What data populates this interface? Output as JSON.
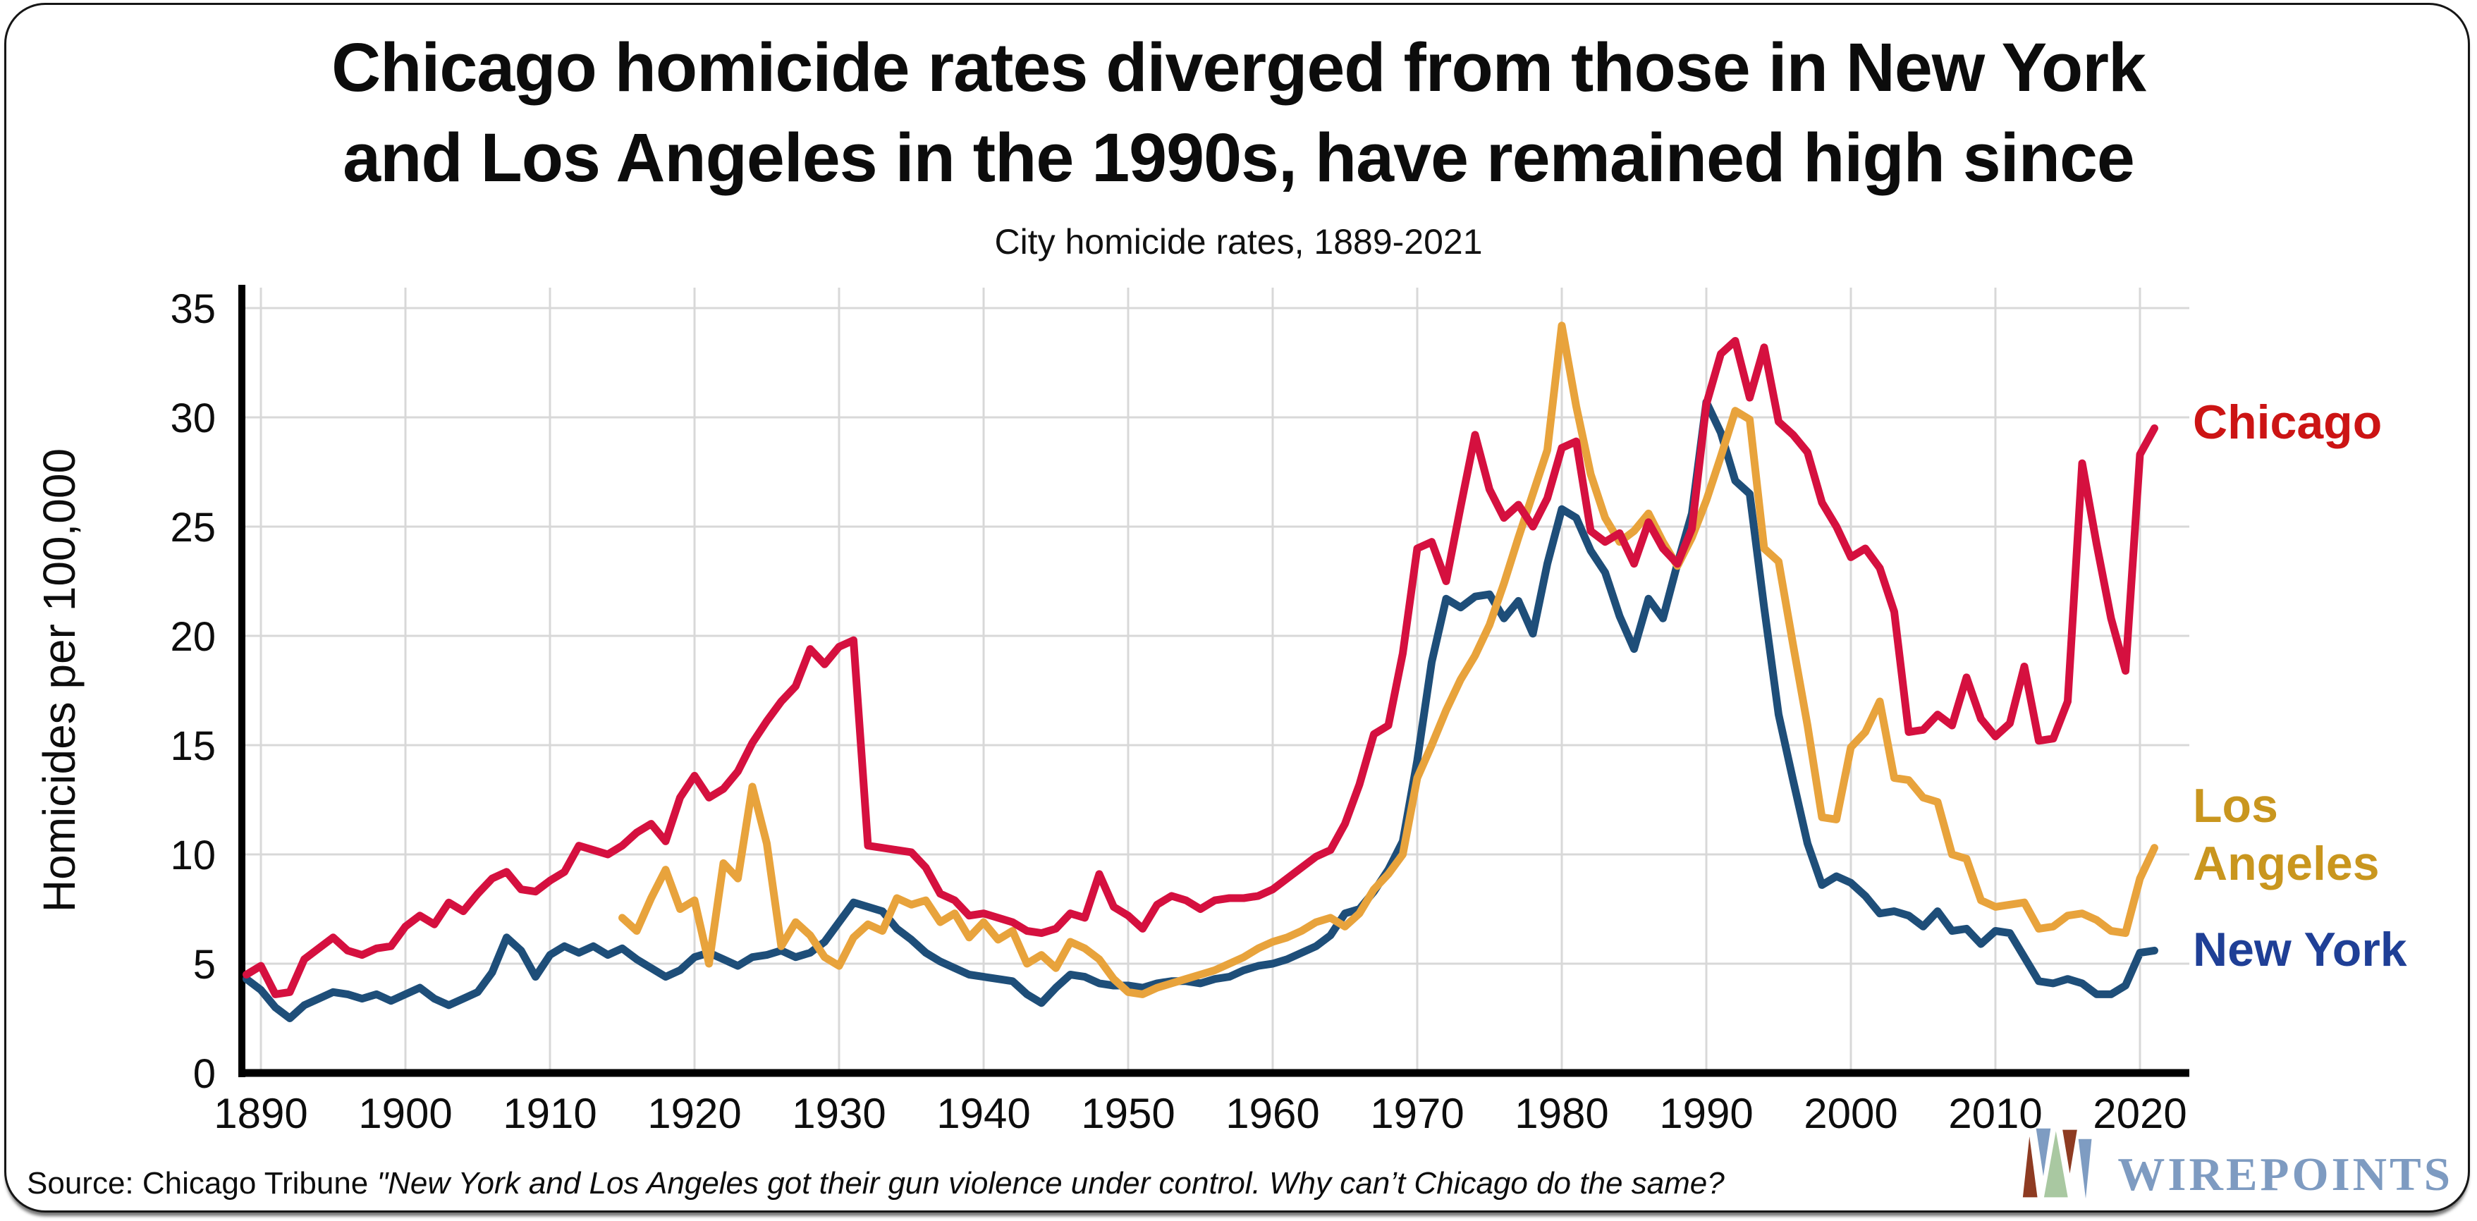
{
  "title": {
    "line1": "Chicago homicide rates diverged from those in New York",
    "line2": "and Los Angeles in the 1990s, have remained high since"
  },
  "subtitle": "City homicide rates, 1889-2021",
  "source": {
    "prefix": "Source: Chicago Tribune ",
    "quote": "\"New York and Los Angeles got their gun violence under control. Why can’t Chicago do the same?"
  },
  "logo": {
    "text": "WIREPOINTS",
    "text_color": "#7E9BC1",
    "mark_colors": [
      "#8E3B22",
      "#7E9CC2",
      "#A9C8A1",
      "#8E3B22",
      "#7E9CC2"
    ]
  },
  "chart_data": {
    "type": "line",
    "title": "Chicago homicide rates diverged from those in New York and Los Angeles in the 1990s, have remained high since",
    "subtitle": "City homicide rates, 1889-2021",
    "xlabel": "",
    "ylabel": "Homicides per 100,000",
    "x_range": [
      1889,
      2021
    ],
    "ylim": [
      0,
      35
    ],
    "yticks": [
      0,
      5,
      10,
      15,
      20,
      25,
      30,
      35
    ],
    "xticks": [
      1890,
      1900,
      1910,
      1920,
      1930,
      1940,
      1950,
      1960,
      1970,
      1980,
      1990,
      2000,
      2010,
      2020
    ],
    "grid": true,
    "legend_position": "right-end-labels",
    "grid_color": "#d8d8d8",
    "axis_color": "#000000",
    "series": [
      {
        "name": "New York",
        "label_lines": [
          "New York"
        ],
        "color": "#1E4E79",
        "label_color": "#1F3F96",
        "start_year": 1889,
        "values": [
          4.3,
          3.8,
          3.0,
          2.5,
          3.1,
          3.4,
          3.7,
          3.6,
          3.4,
          3.6,
          3.3,
          3.6,
          3.9,
          3.4,
          3.1,
          3.4,
          3.7,
          4.6,
          6.2,
          5.6,
          4.4,
          5.4,
          5.8,
          5.5,
          5.8,
          5.4,
          5.7,
          5.2,
          4.8,
          4.4,
          4.7,
          5.3,
          5.5,
          5.2,
          4.9,
          5.3,
          5.4,
          5.6,
          5.3,
          5.5,
          6.0,
          6.9,
          7.8,
          7.6,
          7.4,
          6.6,
          6.1,
          5.5,
          5.1,
          4.8,
          4.5,
          4.4,
          4.3,
          4.2,
          3.6,
          3.2,
          3.9,
          4.5,
          4.4,
          4.1,
          4.0,
          4.0,
          3.9,
          4.1,
          4.2,
          4.2,
          4.1,
          4.3,
          4.4,
          4.7,
          4.9,
          5.0,
          5.2,
          5.5,
          5.8,
          6.3,
          7.3,
          7.5,
          8.3,
          9.3,
          10.6,
          14.3,
          18.8,
          21.7,
          21.3,
          21.8,
          21.9,
          20.8,
          21.6,
          20.1,
          23.3,
          25.8,
          25.4,
          23.9,
          22.9,
          20.9,
          19.4,
          21.7,
          20.8,
          23.3,
          25.6,
          30.7,
          29.3,
          27.1,
          26.5,
          21.3,
          16.4,
          13.4,
          10.5,
          8.6,
          9.0,
          8.7,
          8.1,
          7.3,
          7.4,
          7.2,
          6.7,
          7.4,
          6.5,
          6.6,
          5.9,
          6.5,
          6.4,
          5.3,
          4.2,
          4.1,
          4.3,
          4.1,
          3.6,
          3.6,
          4.0,
          5.5,
          5.6
        ]
      },
      {
        "name": "Los Angeles",
        "label_lines": [
          "Los",
          "Angeles"
        ],
        "color": "#E8A33C",
        "label_color": "#C9961E",
        "start_year": 1915,
        "values": [
          7.1,
          6.5,
          8.0,
          9.3,
          7.5,
          7.9,
          5.0,
          9.6,
          8.9,
          13.1,
          10.5,
          5.8,
          6.9,
          6.3,
          5.3,
          4.9,
          6.2,
          6.8,
          6.5,
          8.0,
          7.7,
          7.9,
          6.9,
          7.3,
          6.2,
          6.9,
          6.1,
          6.5,
          5.0,
          5.4,
          4.8,
          6.0,
          5.7,
          5.2,
          4.3,
          3.7,
          3.6,
          3.9,
          4.1,
          4.3,
          4.5,
          4.7,
          5.0,
          5.3,
          5.7,
          6.0,
          6.2,
          6.5,
          6.9,
          7.1,
          6.7,
          7.3,
          8.4,
          9.1,
          10.0,
          13.5,
          15.0,
          16.6,
          18.0,
          19.1,
          20.5,
          22.4,
          24.5,
          26.5,
          28.5,
          34.2,
          30.5,
          27.4,
          25.4,
          24.3,
          24.8,
          25.6,
          24.3,
          23.2,
          24.5,
          26.2,
          28.2,
          30.3,
          29.9,
          24.0,
          23.4,
          19.6,
          15.9,
          11.7,
          11.6,
          14.9,
          15.6,
          17.0,
          13.5,
          13.4,
          12.6,
          12.4,
          10.0,
          9.8,
          7.9,
          7.6,
          7.7,
          7.8,
          6.6,
          6.7,
          7.2,
          7.3,
          7.0,
          6.5,
          6.4,
          8.9,
          10.3
        ]
      },
      {
        "name": "Chicago",
        "label_lines": [
          "Chicago"
        ],
        "color": "#D5103F",
        "label_color": "#CC1414",
        "start_year": 1889,
        "values": [
          4.5,
          4.9,
          3.6,
          3.7,
          5.2,
          5.7,
          6.2,
          5.6,
          5.4,
          5.7,
          5.8,
          6.7,
          7.2,
          6.8,
          7.8,
          7.4,
          8.2,
          8.9,
          9.2,
          8.4,
          8.3,
          8.8,
          9.2,
          10.4,
          10.2,
          10.0,
          10.4,
          11.0,
          11.4,
          10.6,
          12.6,
          13.6,
          12.6,
          13.0,
          13.8,
          15.1,
          16.1,
          17.0,
          17.7,
          19.4,
          18.7,
          19.5,
          19.8,
          10.4,
          10.3,
          10.2,
          10.1,
          9.4,
          8.2,
          7.9,
          7.2,
          7.3,
          7.1,
          6.9,
          6.5,
          6.4,
          6.6,
          7.3,
          7.1,
          9.1,
          7.6,
          7.2,
          6.6,
          7.7,
          8.1,
          7.9,
          7.5,
          7.9,
          8.0,
          8.0,
          8.1,
          8.4,
          8.9,
          9.4,
          9.9,
          10.2,
          11.4,
          13.2,
          15.5,
          15.9,
          19.2,
          24.0,
          24.3,
          22.5,
          25.9,
          29.2,
          26.7,
          25.4,
          26.0,
          25.0,
          26.3,
          28.6,
          28.9,
          24.8,
          24.3,
          24.7,
          23.3,
          25.2,
          24.0,
          23.3,
          24.9,
          30.6,
          32.9,
          33.5,
          30.9,
          33.2,
          29.8,
          29.2,
          28.4,
          26.1,
          25.0,
          23.6,
          24.0,
          23.1,
          21.1,
          15.6,
          15.7,
          16.4,
          15.9,
          18.1,
          16.2,
          15.4,
          16.0,
          18.6,
          15.2,
          15.3,
          17.0,
          27.9,
          24.2,
          20.8,
          18.4,
          28.3,
          29.5
        ]
      }
    ]
  }
}
